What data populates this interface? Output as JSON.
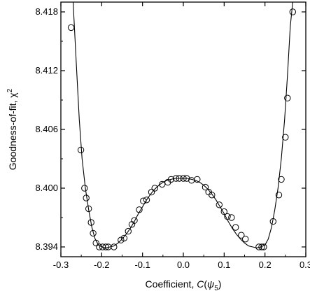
{
  "chart_data": {
    "type": "scatter",
    "xlabel_parts": {
      "prefix": "Coefficient, ",
      "func": "C",
      "open": "(",
      "psi": "ψ",
      "sub": "5",
      "close": ")"
    },
    "ylabel_parts": {
      "prefix": "Goodness-of-fit,  ",
      "chi": "χ",
      "sup": "2"
    },
    "xlim": [
      -0.3,
      0.3
    ],
    "ylim": [
      8.393,
      8.419
    ],
    "x_ticks": [
      -0.3,
      -0.2,
      -0.1,
      0.0,
      0.1,
      0.2,
      0.3
    ],
    "x_tick_labels": [
      "-0.3",
      "-0.2",
      "-0.1",
      "0.0",
      "0.1",
      "0.2",
      "0.3"
    ],
    "y_ticks": [
      8.394,
      8.4,
      8.406,
      8.412,
      8.418
    ],
    "y_tick_labels": [
      "8.394",
      "8.400",
      "8.406",
      "8.412",
      "8.418"
    ],
    "grid": false,
    "series": [
      {
        "kind": "markers",
        "marker": "open-circle",
        "points": [
          [
            -0.275,
            8.4164
          ],
          [
            -0.251,
            8.4039
          ],
          [
            -0.242,
            8.4
          ],
          [
            -0.238,
            8.399
          ],
          [
            -0.232,
            8.3979
          ],
          [
            -0.226,
            8.3965
          ],
          [
            -0.221,
            8.3954
          ],
          [
            -0.214,
            8.3944
          ],
          [
            -0.206,
            8.394
          ],
          [
            -0.198,
            8.394
          ],
          [
            -0.19,
            8.394
          ],
          [
            -0.184,
            8.394
          ],
          [
            -0.17,
            8.394
          ],
          [
            -0.153,
            8.3947
          ],
          [
            -0.145,
            8.3949
          ],
          [
            -0.135,
            8.3956
          ],
          [
            -0.126,
            8.3963
          ],
          [
            -0.12,
            8.3967
          ],
          [
            -0.108,
            8.3978
          ],
          [
            -0.098,
            8.3987
          ],
          [
            -0.09,
            8.3988
          ],
          [
            -0.078,
            8.3996
          ],
          [
            -0.07,
            8.4
          ],
          [
            -0.052,
            8.4004
          ],
          [
            -0.038,
            8.4006
          ],
          [
            -0.03,
            8.4009
          ],
          [
            -0.018,
            8.401
          ],
          [
            -0.01,
            8.401
          ],
          [
            0.0,
            8.401
          ],
          [
            0.008,
            8.401
          ],
          [
            0.02,
            8.4008
          ],
          [
            0.034,
            8.4009
          ],
          [
            0.054,
            8.4001
          ],
          [
            0.062,
            8.3996
          ],
          [
            0.07,
            8.3993
          ],
          [
            0.088,
            8.3983
          ],
          [
            0.1,
            8.3976
          ],
          [
            0.108,
            8.3971
          ],
          [
            0.118,
            8.397
          ],
          [
            0.128,
            8.396
          ],
          [
            0.142,
            8.3952
          ],
          [
            0.152,
            8.3948
          ],
          [
            0.185,
            8.394
          ],
          [
            0.192,
            8.394
          ],
          [
            0.197,
            8.394
          ],
          [
            0.22,
            8.3966
          ],
          [
            0.234,
            8.3993
          ],
          [
            0.24,
            8.4009
          ],
          [
            0.25,
            8.4052
          ],
          [
            0.255,
            8.4092
          ],
          [
            0.268,
            8.418
          ]
        ]
      },
      {
        "kind": "line",
        "points": [
          [
            -0.27,
            8.419
          ],
          [
            -0.262,
            8.4125
          ],
          [
            -0.255,
            8.407
          ],
          [
            -0.248,
            8.403
          ],
          [
            -0.24,
            8.4
          ],
          [
            -0.232,
            8.3978
          ],
          [
            -0.224,
            8.396
          ],
          [
            -0.216,
            8.3948
          ],
          [
            -0.208,
            8.3942
          ],
          [
            -0.2,
            8.394
          ],
          [
            -0.19,
            8.3939
          ],
          [
            -0.18,
            8.394
          ],
          [
            -0.17,
            8.3941
          ],
          [
            -0.16,
            8.3944
          ],
          [
            -0.15,
            8.3948
          ],
          [
            -0.14,
            8.3953
          ],
          [
            -0.13,
            8.3959
          ],
          [
            -0.12,
            8.3966
          ],
          [
            -0.11,
            8.3974
          ],
          [
            -0.1,
            8.3981
          ],
          [
            -0.09,
            8.3988
          ],
          [
            -0.08,
            8.3994
          ],
          [
            -0.07,
            8.3999
          ],
          [
            -0.06,
            8.4003
          ],
          [
            -0.05,
            8.4006
          ],
          [
            -0.04,
            8.4008
          ],
          [
            -0.03,
            8.4009
          ],
          [
            -0.02,
            8.401
          ],
          [
            -0.01,
            8.401
          ],
          [
            0.0,
            8.401
          ],
          [
            0.01,
            8.401
          ],
          [
            0.02,
            8.4009
          ],
          [
            0.03,
            8.4008
          ],
          [
            0.04,
            8.4006
          ],
          [
            0.05,
            8.4003
          ],
          [
            0.06,
            8.3999
          ],
          [
            0.07,
            8.3994
          ],
          [
            0.08,
            8.3988
          ],
          [
            0.09,
            8.3981
          ],
          [
            0.1,
            8.3974
          ],
          [
            0.11,
            8.3966
          ],
          [
            0.12,
            8.3959
          ],
          [
            0.13,
            8.3953
          ],
          [
            0.14,
            8.3948
          ],
          [
            0.15,
            8.3944
          ],
          [
            0.16,
            8.3941
          ],
          [
            0.17,
            8.394
          ],
          [
            0.18,
            8.3939
          ],
          [
            0.19,
            8.394
          ],
          [
            0.2,
            8.3942
          ],
          [
            0.208,
            8.3948
          ],
          [
            0.216,
            8.396
          ],
          [
            0.224,
            8.3978
          ],
          [
            0.232,
            8.4
          ],
          [
            0.24,
            8.403
          ],
          [
            0.248,
            8.407
          ],
          [
            0.255,
            8.4115
          ],
          [
            0.262,
            8.4165
          ],
          [
            0.268,
            8.419
          ]
        ]
      }
    ]
  }
}
